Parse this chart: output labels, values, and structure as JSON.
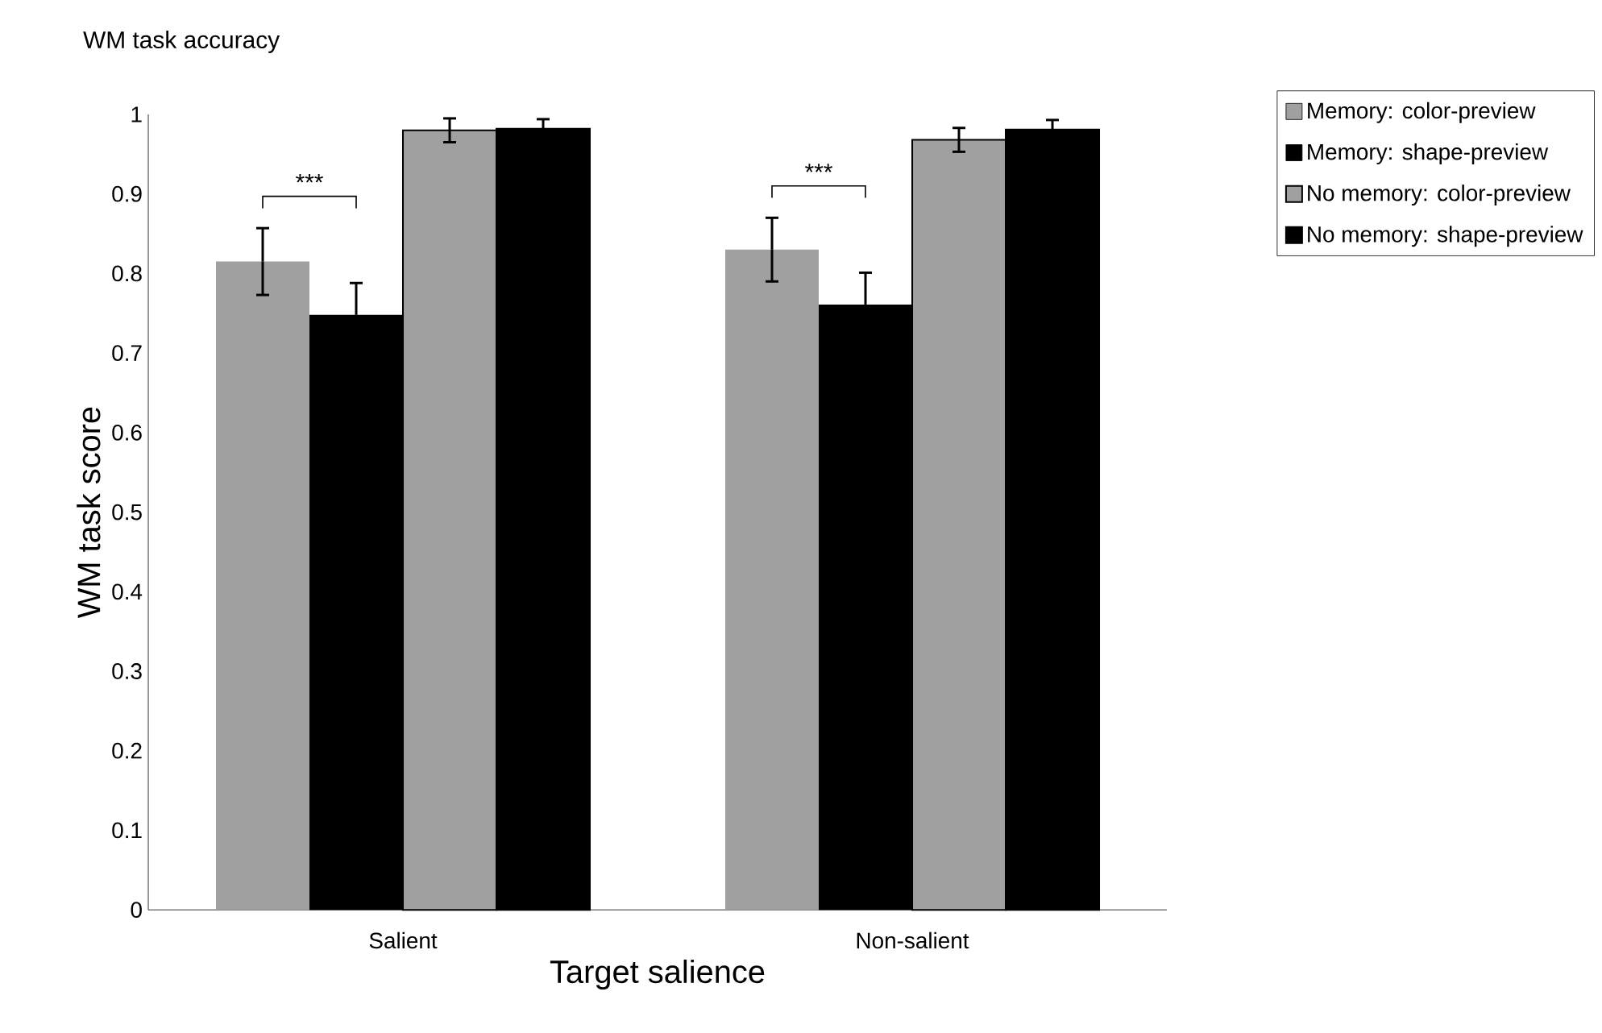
{
  "chart_data": {
    "type": "bar",
    "title": "WM task accuracy",
    "xlabel": "Target salience",
    "ylabel": "WM task score",
    "categories": [
      "Salient",
      "Non-salient"
    ],
    "series": [
      {
        "name": "Memory: color-preview",
        "color": "#a0a0a0",
        "values": [
          0.815,
          0.83
        ],
        "errors": [
          0.042,
          0.04
        ]
      },
      {
        "name": "Memory: shape-preview",
        "color": "#000000",
        "values": [
          0.748,
          0.761
        ],
        "errors": [
          0.04,
          0.04
        ]
      },
      {
        "name": "No memory: color-preview",
        "color": "#a0a0a0",
        "values": [
          0.98,
          0.968
        ],
        "errors": [
          0.015,
          0.015
        ]
      },
      {
        "name": "No memory: shape-preview",
        "color": "#000000",
        "values": [
          0.982,
          0.981
        ],
        "errors": [
          0.012,
          0.012
        ]
      }
    ],
    "annotations": [
      "***",
      "***"
    ],
    "ylim": [
      0,
      1
    ],
    "yticks": [
      0,
      0.1,
      0.2,
      0.3,
      0.4,
      0.5,
      0.6,
      0.7,
      0.8,
      0.9,
      1
    ],
    "grid": false,
    "legend": "top right"
  }
}
